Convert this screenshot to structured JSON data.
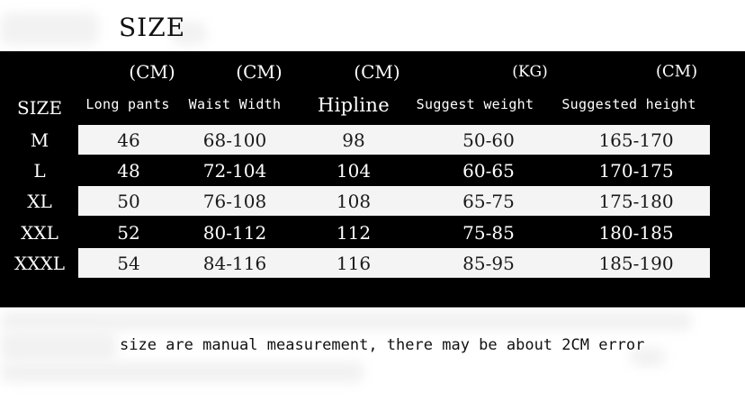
{
  "title": "SIZE",
  "table": {
    "units": [
      "(CM)",
      "(CM)",
      "(CM)",
      "(KG)",
      "(CM)"
    ],
    "size_header": "SIZE",
    "columns": [
      "Long pants",
      "Waist Width",
      "Hipline",
      "Suggest weight",
      "Suggested height"
    ],
    "rows": [
      {
        "size": "M",
        "cells": [
          "46",
          "68-100",
          "98",
          "50-60",
          "165-170"
        ]
      },
      {
        "size": "L",
        "cells": [
          "48",
          "72-104",
          "104",
          "60-65",
          "170-175"
        ]
      },
      {
        "size": "XL",
        "cells": [
          "50",
          "76-108",
          "108",
          "65-75",
          "175-180"
        ]
      },
      {
        "size": "XXL",
        "cells": [
          "52",
          "80-112",
          "112",
          "75-85",
          "180-185"
        ]
      },
      {
        "size": "XXXL",
        "cells": [
          "54",
          "84-116",
          "116",
          "85-95",
          "185-190"
        ]
      }
    ]
  },
  "note": "size are manual measurement, there may be about 2CM error",
  "colors": {
    "panel": "#000000",
    "light_band": "#f4f4f4",
    "text_dark": "#111111",
    "text_light": "#ffffff"
  }
}
